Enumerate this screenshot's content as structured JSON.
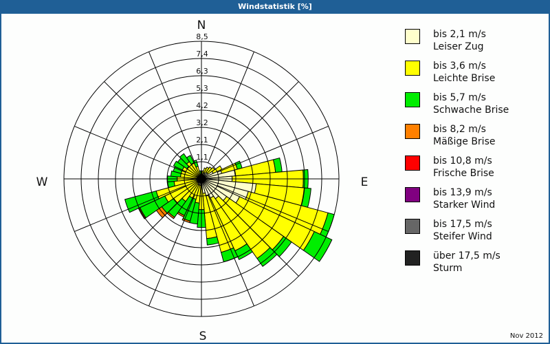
{
  "header": {
    "title": "Windstatistik [%]"
  },
  "footer": {
    "date": "Nov 2012"
  },
  "compass": {
    "n": "N",
    "e": "E",
    "s": "S",
    "w": "W"
  },
  "legend": [
    {
      "range": "bis 2,1 m/s",
      "name": "Leiser Zug",
      "color": "#ffffcc"
    },
    {
      "range": "bis 3,6 m/s",
      "name": "Leichte Brise",
      "color": "#ffff00"
    },
    {
      "range": "bis 5,7 m/s",
      "name": "Schwache Brise",
      "color": "#00ee00"
    },
    {
      "range": "bis 8,2 m/s",
      "name": "Mäßige Brise",
      "color": "#ff8000"
    },
    {
      "range": "bis 10,8 m/s",
      "name": "Frische Brise",
      "color": "#ff0000"
    },
    {
      "range": "bis 13,9 m/s",
      "name": "Starker Wind",
      "color": "#800080"
    },
    {
      "range": "bis 17,5 m/s",
      "name": "Steifer Wind",
      "color": "#666666"
    },
    {
      "range": "über 17,5 m/s",
      "name": "Sturm",
      "color": "#222222"
    }
  ],
  "chart_data": {
    "type": "wind-rose",
    "title": "Windstatistik [%]",
    "date": "Nov 2012",
    "ring_labels": [
      "1,1",
      "2,1",
      "3,2",
      "4,2",
      "5,3",
      "6,3",
      "7,4",
      "8,5"
    ],
    "rmax": 8.5,
    "direction_labels": [
      "N",
      "E",
      "S",
      "W"
    ],
    "sector_width_deg": 10,
    "categories": [
      "Leiser Zug",
      "Leichte Brise",
      "Schwache Brise",
      "Mäßige Brise",
      "Frische Brise",
      "Starker Wind",
      "Steifer Wind",
      "Sturm"
    ],
    "sectors": [
      {
        "dir": 0,
        "values": [
          0.3,
          0.1,
          0.0,
          0
        ]
      },
      {
        "dir": 10,
        "values": [
          0.3,
          0.2,
          0.0,
          0
        ]
      },
      {
        "dir": 20,
        "values": [
          0.4,
          0.3,
          0.0,
          0
        ]
      },
      {
        "dir": 30,
        "values": [
          0.4,
          0.4,
          0.0,
          0
        ]
      },
      {
        "dir": 40,
        "values": [
          0.5,
          0.4,
          0.0,
          0
        ]
      },
      {
        "dir": 50,
        "values": [
          0.5,
          0.5,
          0.0,
          0
        ]
      },
      {
        "dir": 60,
        "values": [
          0.8,
          0.6,
          0.0,
          0
        ]
      },
      {
        "dir": 70,
        "values": [
          1.3,
          1.0,
          0.3,
          0
        ]
      },
      {
        "dir": 80,
        "values": [
          2.1,
          2.5,
          0.4,
          0
        ]
      },
      {
        "dir": 90,
        "values": [
          1.9,
          4.4,
          0.3,
          0
        ]
      },
      {
        "dir": 100,
        "values": [
          3.4,
          3.0,
          0.4,
          0
        ]
      },
      {
        "dir": 110,
        "values": [
          3.0,
          5.1,
          0.4,
          0
        ]
      },
      {
        "dir": 120,
        "values": [
          2.6,
          5.1,
          1.2,
          0
        ]
      },
      {
        "dir": 130,
        "values": [
          1.9,
          4.3,
          0.6,
          0
        ]
      },
      {
        "dir": 140,
        "values": [
          1.5,
          4.5,
          0.6,
          0
        ]
      },
      {
        "dir": 150,
        "values": [
          1.3,
          3.6,
          0.6,
          0
        ]
      },
      {
        "dir": 160,
        "values": [
          1.1,
          3.6,
          0.6,
          0
        ]
      },
      {
        "dir": 170,
        "values": [
          0.9,
          2.8,
          0.4,
          0
        ]
      },
      {
        "dir": 180,
        "values": [
          0.4,
          1.5,
          1.1,
          0
        ]
      },
      {
        "dir": 190,
        "values": [
          0.4,
          1.1,
          1.3,
          0
        ]
      },
      {
        "dir": 200,
        "values": [
          0.4,
          0.9,
          1.4,
          0.1
        ]
      },
      {
        "dir": 210,
        "values": [
          0.4,
          0.9,
          1.2,
          0.1
        ]
      },
      {
        "dir": 220,
        "values": [
          0.3,
          1.4,
          1.2,
          0.1
        ]
      },
      {
        "dir": 230,
        "values": [
          0.3,
          1.8,
          0.9,
          0.4
        ]
      },
      {
        "dir": 240,
        "values": [
          0.3,
          2.2,
          1.7,
          0.1
        ]
      },
      {
        "dir": 250,
        "values": [
          0.3,
          2.6,
          2.0,
          0
        ]
      },
      {
        "dir": 260,
        "values": [
          0.3,
          1.4,
          0.4,
          0
        ]
      },
      {
        "dir": 270,
        "values": [
          0.2,
          1.3,
          0.6,
          0
        ]
      },
      {
        "dir": 280,
        "values": [
          0.2,
          1.1,
          0.6,
          0
        ]
      },
      {
        "dir": 290,
        "values": [
          0.2,
          1.1,
          0.5,
          0
        ]
      },
      {
        "dir": 300,
        "values": [
          0.2,
          1.1,
          0.6,
          0
        ]
      },
      {
        "dir": 310,
        "values": [
          0.2,
          0.9,
          0.7,
          0
        ]
      },
      {
        "dir": 320,
        "values": [
          0.2,
          1.1,
          0.6,
          0
        ]
      },
      {
        "dir": 330,
        "values": [
          0.2,
          0.9,
          0.5,
          0
        ]
      },
      {
        "dir": 340,
        "values": [
          0.2,
          0.6,
          0.4,
          0
        ]
      },
      {
        "dir": 350,
        "values": [
          0.1,
          0.2,
          0.2,
          0
        ]
      }
    ]
  }
}
